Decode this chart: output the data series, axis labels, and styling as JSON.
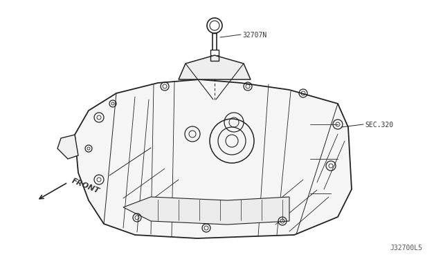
{
  "background_color": "#ffffff",
  "figure_width": 6.4,
  "figure_height": 3.72,
  "dpi": 100,
  "label_32707N": "32707N",
  "label_sec320": "SEC.320",
  "label_front": "FRONT",
  "label_diagram_id": "J32700L5",
  "label_color": "#333333",
  "line_color": "#333333",
  "drawing_color": "#222222"
}
